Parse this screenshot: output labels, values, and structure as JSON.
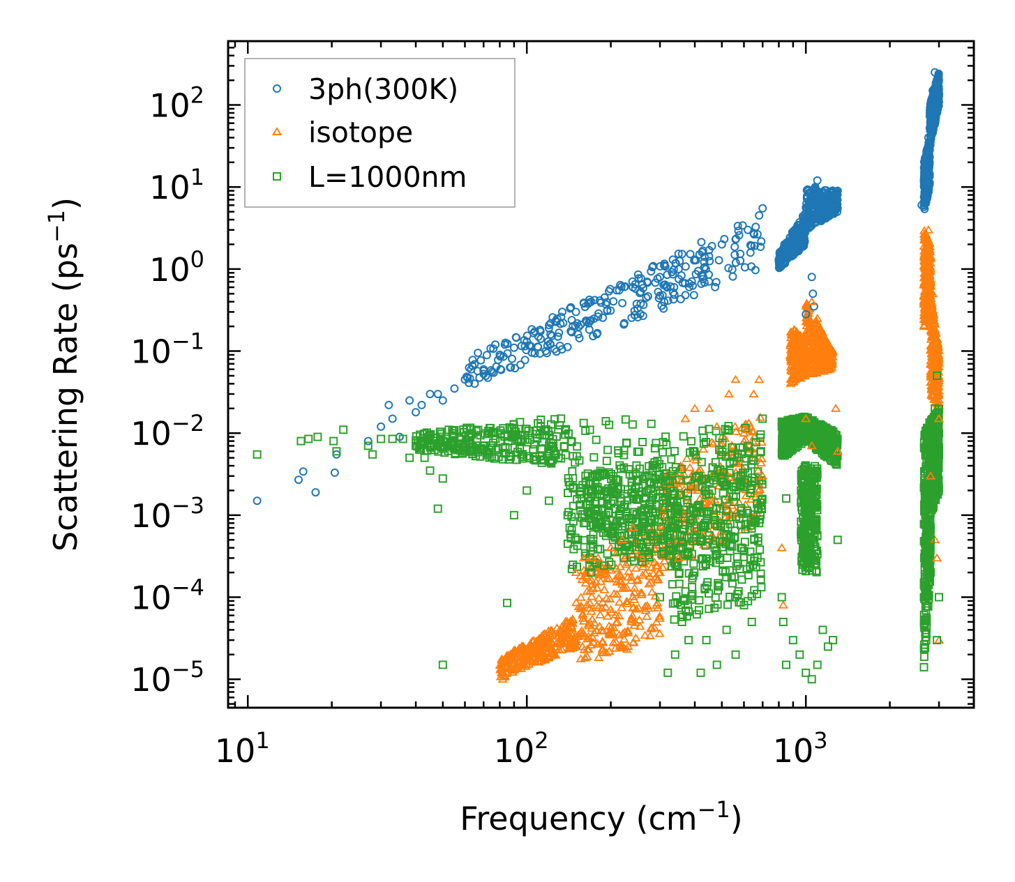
{
  "chart_data": {
    "type": "scatter",
    "xscale": "log",
    "yscale": "log",
    "xlim": [
      8.5,
      4000
    ],
    "ylim": [
      4.5e-06,
      600
    ],
    "xlabel": {
      "base": "Frequency (cm",
      "sup": "−1",
      "end": ")"
    },
    "ylabel": {
      "base": "Scattering Rate (ps",
      "sup": "−1",
      "end": ")"
    },
    "x_tick_labels": [
      {
        "value": 10,
        "base": "10",
        "exp": "1"
      },
      {
        "value": 100,
        "base": "10",
        "exp": "2"
      },
      {
        "value": 1000,
        "base": "10",
        "exp": "3"
      }
    ],
    "y_tick_labels": [
      {
        "value": 100,
        "base": "10",
        "exp": "2"
      },
      {
        "value": 10,
        "base": "10",
        "exp": "1"
      },
      {
        "value": 1,
        "base": "10",
        "exp": "0"
      },
      {
        "value": 0.1,
        "base": "10",
        "exp": "−1"
      },
      {
        "value": 0.01,
        "base": "10",
        "exp": "−2"
      },
      {
        "value": 0.001,
        "base": "10",
        "exp": "−3"
      },
      {
        "value": 0.0001,
        "base": "10",
        "exp": "−4"
      },
      {
        "value": 1e-05,
        "base": "10",
        "exp": "−5"
      }
    ],
    "legend_position": "top-left",
    "series": [
      {
        "name": "3ph(300K)",
        "marker": "circle",
        "color": "#1f77b4",
        "points": [
          [
            10.8,
            0.0015
          ],
          [
            15.2,
            0.0027
          ],
          [
            15.8,
            0.0034
          ],
          [
            17.5,
            0.0019
          ],
          [
            20.5,
            0.0033
          ],
          [
            20.8,
            0.0055
          ],
          [
            27,
            0.008
          ],
          [
            30,
            0.012
          ],
          [
            32,
            0.022
          ],
          [
            33,
            0.015
          ],
          [
            35,
            0.009
          ],
          [
            38,
            0.025
          ],
          [
            40,
            0.018
          ],
          [
            42,
            0.022
          ],
          [
            45,
            0.03
          ],
          [
            48,
            0.03
          ],
          [
            50,
            0.025
          ],
          [
            55,
            0.035
          ],
          [
            60,
            0.045
          ],
          [
            65,
            0.04
          ],
          [
            70,
            0.06
          ],
          [
            80,
            0.09
          ],
          [
            90,
            0.11
          ],
          [
            100,
            0.13
          ],
          [
            110,
            0.15
          ],
          [
            120,
            0.19
          ],
          [
            135,
            0.22
          ],
          [
            150,
            0.3
          ],
          [
            160,
            0.38
          ],
          [
            170,
            0.4
          ],
          [
            190,
            0.45
          ],
          [
            210,
            0.55
          ],
          [
            240,
            0.6
          ],
          [
            270,
            0.7
          ],
          [
            300,
            0.8
          ],
          [
            350,
            1.0
          ],
          [
            400,
            1.3
          ],
          [
            450,
            1.7
          ],
          [
            500,
            2.0
          ],
          [
            560,
            2.3
          ],
          [
            620,
            3.0
          ],
          [
            680,
            4.5
          ],
          [
            700,
            5.5
          ],
          [
            800,
            1.3
          ],
          [
            850,
            1.6
          ],
          [
            900,
            2.0
          ],
          [
            950,
            2.5
          ],
          [
            1000,
            3.5
          ],
          [
            1050,
            5.0
          ],
          [
            1080,
            10
          ],
          [
            1100,
            12
          ],
          [
            1150,
            6.0
          ],
          [
            1200,
            6.5
          ],
          [
            1250,
            7.5
          ],
          [
            1300,
            9.0
          ],
          [
            1050,
            0.8
          ],
          [
            1060,
            0.5
          ],
          [
            1070,
            0.35
          ],
          [
            1000,
            0.28
          ],
          [
            2600,
            6
          ],
          [
            2650,
            12
          ],
          [
            2700,
            20
          ],
          [
            2750,
            40
          ],
          [
            2800,
            80
          ],
          [
            2850,
            150
          ],
          [
            2900,
            250
          ],
          [
            2950,
            180
          ],
          [
            3000,
            130
          ]
        ],
        "bands": [
          {
            "x0": 60,
            "x1": 700,
            "y0a": 0.035,
            "y0b": 0.08,
            "y1a": 1.0,
            "y1b": 5.0
          },
          {
            "x0": 800,
            "x1": 1000,
            "y0a": 1.0,
            "y0b": 1.6,
            "y1a": 2.0,
            "y1b": 5.0
          },
          {
            "x0": 1000,
            "x1": 1300,
            "y0a": 3.0,
            "y0b": 10.0,
            "y1a": 5.0,
            "y1b": 9.0
          },
          {
            "x0": 2650,
            "x1": 2780,
            "y0a": 5.0,
            "y0b": 20.0,
            "y1a": 10.0,
            "y1b": 40.0
          },
          {
            "x0": 2780,
            "x1": 3000,
            "y0a": 30.0,
            "y0b": 100.0,
            "y1a": 100.0,
            "y1b": 250.0
          }
        ]
      },
      {
        "name": "isotope",
        "marker": "triangle",
        "color": "#ff7f0e",
        "points": [
          [
            82,
            1e-05
          ],
          [
            90,
            1.3e-05
          ],
          [
            100,
            1.5e-05
          ],
          [
            110,
            1.8e-05
          ],
          [
            120,
            2.2e-05
          ],
          [
            130,
            2.7e-05
          ],
          [
            140,
            3.5e-05
          ],
          [
            150,
            0.0002
          ],
          [
            160,
            0.0003
          ],
          [
            170,
            0.0003
          ],
          [
            180,
            0.0003
          ],
          [
            200,
            0.0004
          ],
          [
            220,
            0.0005
          ],
          [
            240,
            0.0007
          ],
          [
            260,
            0.0003
          ],
          [
            300,
            0.0002
          ],
          [
            350,
            0.0003
          ],
          [
            370,
            0.015
          ],
          [
            400,
            0.02
          ],
          [
            450,
            0.02
          ],
          [
            480,
            0.012
          ],
          [
            530,
            0.03
          ],
          [
            560,
            0.045
          ],
          [
            600,
            0.01
          ],
          [
            650,
            0.03
          ],
          [
            680,
            0.045
          ],
          [
            700,
            0.003
          ],
          [
            820,
            0.0004
          ],
          [
            830,
            8e-05
          ],
          [
            900,
            0.06
          ],
          [
            950,
            0.05
          ],
          [
            1000,
            0.1
          ],
          [
            1050,
            0.4
          ],
          [
            1100,
            0.25
          ],
          [
            1150,
            0.06
          ],
          [
            1200,
            0.08
          ],
          [
            1250,
            0.1
          ],
          [
            1280,
            0.02
          ],
          [
            1300,
            0.006
          ],
          [
            1000,
            0.015
          ],
          [
            1050,
            0.007
          ],
          [
            2650,
            0.2
          ],
          [
            2700,
            1.5
          ],
          [
            2750,
            3.0
          ],
          [
            2800,
            1.0
          ],
          [
            2850,
            0.5
          ],
          [
            2900,
            0.1
          ],
          [
            2950,
            0.05
          ],
          [
            3000,
            0.015
          ],
          [
            2900,
            0.0005
          ],
          [
            2950,
            0.0003
          ],
          [
            3000,
            3e-05
          ],
          [
            2800,
            0.003
          ]
        ],
        "bands": [
          {
            "x0": 80,
            "x1": 150,
            "y0a": 1e-05,
            "y0b": 1.8e-05,
            "y1a": 2.5e-05,
            "y1b": 6e-05
          },
          {
            "x0": 150,
            "x1": 300,
            "y0a": 1.5e-05,
            "y0b": 0.0002,
            "y1a": 3e-05,
            "y1b": 0.0008
          },
          {
            "x0": 300,
            "x1": 700,
            "y0a": 0.0002,
            "y0b": 0.003,
            "y1a": 0.0008,
            "y1b": 0.02
          },
          {
            "x0": 880,
            "x1": 1000,
            "y0a": 0.04,
            "y0b": 0.2,
            "y1a": 0.05,
            "y1b": 0.15
          },
          {
            "x0": 1000,
            "x1": 1250,
            "y0a": 0.05,
            "y0b": 0.4,
            "y1a": 0.06,
            "y1b": 0.1
          },
          {
            "x0": 2650,
            "x1": 2800,
            "y0a": 0.2,
            "y0b": 3.0,
            "y1a": 0.3,
            "y1b": 2.0
          },
          {
            "x0": 2800,
            "x1": 3000,
            "y0a": 0.03,
            "y0b": 0.5,
            "y1a": 0.02,
            "y1b": 0.1
          }
        ]
      },
      {
        "name": "L=1000nm",
        "marker": "square",
        "color": "#2ca02c",
        "points": [
          [
            10.8,
            0.0055
          ],
          [
            15.5,
            0.008
          ],
          [
            16.5,
            0.0085
          ],
          [
            17.8,
            0.009
          ],
          [
            20.3,
            0.008
          ],
          [
            20.8,
            0.006
          ],
          [
            22,
            0.011
          ],
          [
            27,
            0.007
          ],
          [
            28,
            0.0055
          ],
          [
            30,
            0.0085
          ],
          [
            33,
            0.0085
          ],
          [
            36,
            0.0085
          ],
          [
            38,
            0.005
          ],
          [
            40,
            0.007
          ],
          [
            43,
            0.005
          ],
          [
            45,
            0.0035
          ],
          [
            50,
            0.0028
          ],
          [
            48,
            0.0012
          ],
          [
            50,
            1.5e-05
          ],
          [
            85,
            8.5e-05
          ],
          [
            90,
            0.001
          ],
          [
            100,
            0.002
          ],
          [
            120,
            0.0015
          ],
          [
            140,
            0.001
          ],
          [
            150,
            0.0005
          ],
          [
            160,
            0.0008
          ],
          [
            170,
            0.0002
          ],
          [
            180,
            0.001
          ],
          [
            200,
            0.0006
          ],
          [
            240,
            0.003
          ],
          [
            260,
            0.0003
          ],
          [
            280,
            0.0006
          ],
          [
            300,
            0.0001
          ],
          [
            320,
            1.2e-05
          ],
          [
            340,
            2e-05
          ],
          [
            360,
            5e-05
          ],
          [
            380,
            3e-05
          ],
          [
            420,
            1.2e-05
          ],
          [
            440,
            3e-05
          ],
          [
            480,
            1.5e-05
          ],
          [
            520,
            4e-05
          ],
          [
            560,
            2e-05
          ],
          [
            600,
            8e-05
          ],
          [
            640,
            5e-05
          ],
          [
            680,
            0.0008
          ],
          [
            700,
            0.015
          ],
          [
            820,
            0.0001
          ],
          [
            830,
            5e-05
          ],
          [
            850,
            1.5e-05
          ],
          [
            900,
            3e-05
          ],
          [
            950,
            2e-05
          ],
          [
            1000,
            1.2e-05
          ],
          [
            1050,
            1e-05
          ],
          [
            1100,
            1.5e-05
          ],
          [
            1150,
            4e-05
          ],
          [
            1200,
            2.5e-05
          ],
          [
            1250,
            3e-05
          ],
          [
            1300,
            0.0005
          ],
          [
            820,
            0.012
          ],
          [
            850,
            0.0016
          ],
          [
            2650,
            0.0001
          ],
          [
            2700,
            0.0004
          ],
          [
            2750,
            0.001
          ],
          [
            2800,
            0.0005
          ],
          [
            2850,
            0.005
          ],
          [
            2900,
            0.02
          ],
          [
            2950,
            0.05
          ],
          [
            3000,
            0.01
          ],
          [
            2650,
            1.4e-05
          ],
          [
            2700,
            3e-05
          ],
          [
            2950,
            3e-05
          ],
          [
            3000,
            0.0001
          ]
        ],
        "bands": [
          {
            "x0": 40,
            "x1": 140,
            "y0a": 0.006,
            "y0b": 0.01,
            "y1a": 0.004,
            "y1b": 0.016
          },
          {
            "x0": 140,
            "x1": 700,
            "y0a": 0.0005,
            "y0b": 0.016,
            "y1a": 0.0002,
            "y1b": 0.012
          },
          {
            "x0": 140,
            "x1": 330,
            "y0a": 0.0002,
            "y0b": 0.003,
            "y1a": 0.0003,
            "y1b": 0.005
          },
          {
            "x0": 330,
            "x1": 700,
            "y0a": 5e-05,
            "y0b": 0.002,
            "y1a": 0.0001,
            "y1b": 0.01
          },
          {
            "x0": 820,
            "x1": 1000,
            "y0a": 0.005,
            "y0b": 0.014,
            "y1a": 0.008,
            "y1b": 0.016
          },
          {
            "x0": 1000,
            "x1": 1300,
            "y0a": 0.008,
            "y0b": 0.016,
            "y1a": 0.004,
            "y1b": 0.01
          },
          {
            "x0": 960,
            "x1": 1100,
            "y0a": 0.0002,
            "y0b": 0.004,
            "y1a": 0.0002,
            "y1b": 0.005
          },
          {
            "x0": 2650,
            "x1": 2800,
            "y0a": 1.4e-05,
            "y0b": 0.01,
            "y1a": 0.0002,
            "y1b": 0.015
          },
          {
            "x0": 2800,
            "x1": 3000,
            "y0a": 0.001,
            "y0b": 0.015,
            "y1a": 0.002,
            "y1b": 0.02
          }
        ]
      }
    ]
  }
}
